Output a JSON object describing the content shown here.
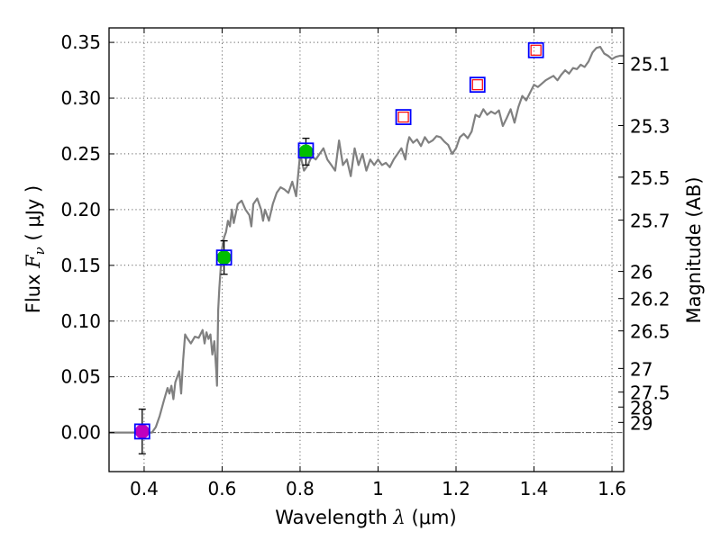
{
  "chart_data": {
    "type": "line",
    "title": "",
    "xlabel": {
      "prefix": "Wavelength  ",
      "symbol": "λ",
      "unit": " (μm)"
    },
    "ylabel": {
      "prefix": "Flux  ",
      "symbol": "F",
      "subscript": "ν",
      "unit": "  ( μJy )"
    },
    "y2label": "Magnitude (AB)",
    "xlim": [
      0.31,
      1.63
    ],
    "ylim": [
      -0.035,
      0.363
    ],
    "grid": true,
    "x_ticks": [
      {
        "value": 0.4,
        "label": "0.4"
      },
      {
        "value": 0.6,
        "label": "0.6"
      },
      {
        "value": 0.8,
        "label": "0.8"
      },
      {
        "value": 1.0,
        "label": "1"
      },
      {
        "value": 1.2,
        "label": "1.2"
      },
      {
        "value": 1.4,
        "label": "1.4"
      },
      {
        "value": 1.6,
        "label": "1.6"
      }
    ],
    "y_ticks": [
      {
        "value": 0.0,
        "label": "0.00"
      },
      {
        "value": 0.05,
        "label": "0.05"
      },
      {
        "value": 0.1,
        "label": "0.10"
      },
      {
        "value": 0.15,
        "label": "0.15"
      },
      {
        "value": 0.2,
        "label": "0.20"
      },
      {
        "value": 0.25,
        "label": "0.25"
      },
      {
        "value": 0.3,
        "label": "0.30"
      },
      {
        "value": 0.35,
        "label": "0.35"
      }
    ],
    "mag_ticks": [
      {
        "value": 25.1,
        "label": "25.1"
      },
      {
        "value": 25.3,
        "label": "25.3"
      },
      {
        "value": 25.5,
        "label": "25.5"
      },
      {
        "value": 25.7,
        "label": "25.7"
      },
      {
        "value": 26.0,
        "label": "26"
      },
      {
        "value": 26.2,
        "label": "26.2"
      },
      {
        "value": 26.5,
        "label": "26.5"
      },
      {
        "value": 27.0,
        "label": "27"
      },
      {
        "value": 27.5,
        "label": "27.5"
      },
      {
        "value": 28.0,
        "label": "28"
      },
      {
        "value": 29.0,
        "label": "29"
      }
    ],
    "zero_line": 0.0,
    "model_spectrum": {
      "name": "model SED",
      "color": "#808080",
      "x": [
        0.3,
        0.42,
        0.43,
        0.44,
        0.45,
        0.46,
        0.465,
        0.47,
        0.475,
        0.48,
        0.49,
        0.495,
        0.5,
        0.505,
        0.51,
        0.52,
        0.53,
        0.54,
        0.55,
        0.555,
        0.56,
        0.565,
        0.57,
        0.575,
        0.58,
        0.585,
        0.587,
        0.59,
        0.593,
        0.597,
        0.6,
        0.605,
        0.61,
        0.615,
        0.62,
        0.625,
        0.63,
        0.64,
        0.65,
        0.66,
        0.67,
        0.675,
        0.68,
        0.69,
        0.7,
        0.705,
        0.71,
        0.72,
        0.73,
        0.74,
        0.75,
        0.76,
        0.77,
        0.78,
        0.79,
        0.8,
        0.81,
        0.82,
        0.83,
        0.84,
        0.85,
        0.86,
        0.87,
        0.88,
        0.89,
        0.9,
        0.91,
        0.92,
        0.93,
        0.94,
        0.95,
        0.96,
        0.97,
        0.98,
        0.99,
        1.0,
        1.01,
        1.02,
        1.03,
        1.04,
        1.05,
        1.06,
        1.07,
        1.075,
        1.08,
        1.09,
        1.1,
        1.11,
        1.12,
        1.13,
        1.14,
        1.15,
        1.16,
        1.17,
        1.18,
        1.19,
        1.2,
        1.21,
        1.22,
        1.23,
        1.24,
        1.25,
        1.26,
        1.27,
        1.28,
        1.29,
        1.3,
        1.31,
        1.32,
        1.33,
        1.34,
        1.35,
        1.36,
        1.37,
        1.38,
        1.39,
        1.4,
        1.41,
        1.42,
        1.43,
        1.44,
        1.45,
        1.46,
        1.47,
        1.48,
        1.49,
        1.5,
        1.51,
        1.52,
        1.53,
        1.54,
        1.55,
        1.56,
        1.57,
        1.58,
        1.59,
        1.6,
        1.61,
        1.62,
        1.63
      ],
      "y": [
        0.0,
        0.0,
        0.005,
        0.015,
        0.028,
        0.04,
        0.035,
        0.042,
        0.03,
        0.045,
        0.055,
        0.035,
        0.065,
        0.088,
        0.085,
        0.08,
        0.086,
        0.085,
        0.092,
        0.08,
        0.09,
        0.084,
        0.088,
        0.07,
        0.082,
        0.055,
        0.042,
        0.11,
        0.13,
        0.15,
        0.165,
        0.175,
        0.18,
        0.19,
        0.185,
        0.2,
        0.188,
        0.205,
        0.208,
        0.2,
        0.195,
        0.185,
        0.205,
        0.21,
        0.2,
        0.19,
        0.2,
        0.19,
        0.205,
        0.215,
        0.22,
        0.218,
        0.215,
        0.225,
        0.212,
        0.25,
        0.235,
        0.24,
        0.248,
        0.245,
        0.25,
        0.255,
        0.245,
        0.24,
        0.235,
        0.262,
        0.24,
        0.245,
        0.23,
        0.255,
        0.24,
        0.25,
        0.235,
        0.245,
        0.24,
        0.245,
        0.24,
        0.242,
        0.238,
        0.245,
        0.25,
        0.255,
        0.245,
        0.258,
        0.265,
        0.26,
        0.263,
        0.257,
        0.265,
        0.26,
        0.262,
        0.266,
        0.265,
        0.261,
        0.258,
        0.25,
        0.255,
        0.265,
        0.268,
        0.264,
        0.27,
        0.285,
        0.283,
        0.29,
        0.285,
        0.288,
        0.286,
        0.289,
        0.275,
        0.282,
        0.29,
        0.278,
        0.292,
        0.302,
        0.298,
        0.305,
        0.312,
        0.31,
        0.313,
        0.316,
        0.318,
        0.32,
        0.316,
        0.321,
        0.325,
        0.322,
        0.327,
        0.326,
        0.33,
        0.328,
        0.333,
        0.341,
        0.345,
        0.346,
        0.34,
        0.338,
        0.335,
        0.337,
        0.338,
        0.338
      ]
    },
    "detections": [
      {
        "x": 0.395,
        "y": 0.001,
        "yerr": 0.02,
        "color": "#bf00bf"
      },
      {
        "x": 0.605,
        "y": 0.157,
        "yerr": 0.015,
        "color": "#00bf00"
      },
      {
        "x": 0.815,
        "y": 0.252,
        "yerr": 0.012,
        "color": "#00bf00"
      }
    ],
    "model_bands": {
      "x": [
        0.395,
        0.605,
        0.815,
        1.065,
        1.255,
        1.405
      ],
      "y": [
        0.001,
        0.157,
        0.253,
        0.283,
        0.312,
        0.343
      ],
      "color": "#0000ff"
    },
    "upper_points": {
      "x": [
        1.065,
        1.255,
        1.405
      ],
      "y": [
        0.283,
        0.312,
        0.343
      ],
      "color": "#ff0000"
    }
  }
}
